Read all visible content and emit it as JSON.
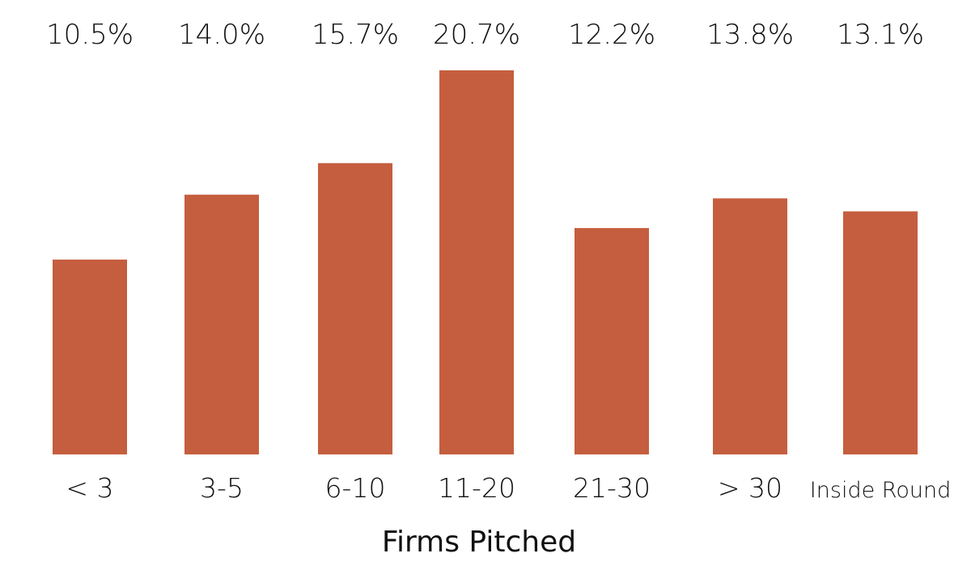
{
  "chart_data": {
    "type": "bar",
    "categories": [
      "< 3",
      "3-5",
      "6-10",
      "11-20",
      "21-30",
      "> 30",
      "Inside Round"
    ],
    "values": [
      10.5,
      14.0,
      15.7,
      20.7,
      12.2,
      13.8,
      13.1
    ],
    "value_labels": [
      "10.5%",
      "14.0%",
      "15.7%",
      "20.7%",
      "12.2%",
      "13.8%",
      "13.1%"
    ],
    "title": "",
    "xlabel": "Firms Pitched",
    "ylabel": "",
    "ylim": [
      0,
      21
    ],
    "grid": false,
    "bar_color": "#C55E3E"
  }
}
